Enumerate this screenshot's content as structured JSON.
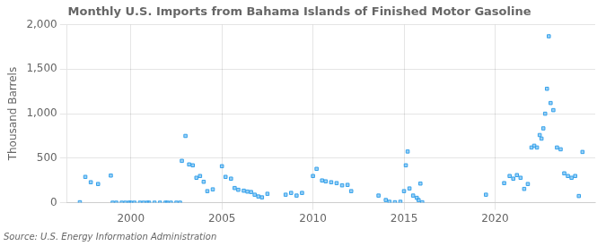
{
  "chart_data": {
    "type": "scatter",
    "title": "Monthly U.S. Imports from Bahama Islands of Finished Motor Gasoline",
    "ylabel": "Thousand Barrels",
    "annotation": "Source: U.S. Energy Information Administration",
    "marker": "square",
    "grid": true,
    "xlim": [
      1996.5,
      2025.5
    ],
    "xticks": [
      2000,
      2005,
      2010,
      2015,
      2020
    ],
    "ylim": [
      0,
      2000
    ],
    "yticks": [
      0,
      500,
      {
        "value": 1000,
        "label": "1,000"
      },
      {
        "value": 1500,
        "label": "1,500"
      },
      {
        "value": 2000,
        "label": "2,000"
      }
    ],
    "x": [
      1997.2,
      1997.5,
      1997.8,
      1998.2,
      1998.9,
      1999.0,
      1999.2,
      1999.5,
      1999.7,
      1999.9,
      2000.0,
      2000.2,
      2000.5,
      2000.7,
      2000.9,
      2001.0,
      2001.3,
      2001.6,
      2001.9,
      2002.0,
      2002.2,
      2002.5,
      2002.7,
      2002.8,
      2003.0,
      2003.2,
      2003.4,
      2003.6,
      2003.8,
      2004.0,
      2004.2,
      2004.5,
      2005.0,
      2005.2,
      2005.5,
      2005.7,
      2005.9,
      2006.2,
      2006.4,
      2006.6,
      2006.8,
      2007.0,
      2007.2,
      2007.5,
      2008.5,
      2008.8,
      2009.1,
      2009.4,
      2010.0,
      2010.2,
      2010.5,
      2010.7,
      2011.0,
      2011.3,
      2011.6,
      2011.9,
      2012.1,
      2013.6,
      2014.0,
      2014.2,
      2014.5,
      2014.8,
      2015.0,
      2015.1,
      2015.2,
      2015.3,
      2015.5,
      2015.7,
      2015.8,
      2015.9,
      2016.0,
      2019.5,
      2020.5,
      2020.8,
      2021.0,
      2021.2,
      2021.4,
      2021.6,
      2021.8,
      2022.0,
      2022.15,
      2022.3,
      2022.45,
      2022.55,
      2022.65,
      2022.75,
      2022.85,
      2022.95,
      2023.05,
      2023.2,
      2023.4,
      2023.6,
      2023.8,
      2024.0,
      2024.2,
      2024.4,
      2024.6,
      2024.8
    ],
    "values": [
      5,
      290,
      230,
      210,
      305,
      0,
      0,
      0,
      0,
      0,
      0,
      0,
      0,
      0,
      0,
      0,
      0,
      0,
      0,
      0,
      0,
      0,
      0,
      470,
      750,
      430,
      420,
      280,
      300,
      235,
      130,
      150,
      410,
      290,
      270,
      165,
      145,
      135,
      125,
      120,
      90,
      70,
      60,
      100,
      90,
      110,
      80,
      110,
      300,
      380,
      250,
      240,
      230,
      220,
      195,
      200,
      130,
      80,
      30,
      10,
      5,
      10,
      130,
      420,
      575,
      160,
      80,
      55,
      30,
      215,
      5,
      90,
      220,
      300,
      270,
      310,
      280,
      155,
      210,
      620,
      640,
      620,
      760,
      720,
      835,
      1000,
      1280,
      1870,
      1120,
      1040,
      620,
      600,
      330,
      300,
      280,
      300,
      75,
      570
    ]
  }
}
